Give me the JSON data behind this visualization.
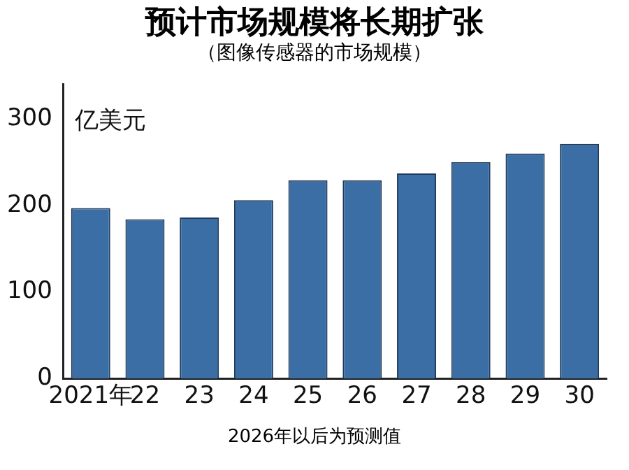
{
  "chart_data": {
    "type": "bar",
    "title": "预计市场规模将长期扩张",
    "subtitle": "（图像传感器的市场规模）",
    "ylabel": "亿美元",
    "annotations": [
      "2026年以后为预测值"
    ],
    "categories": [
      "2021年",
      "22",
      "23",
      "24",
      "25",
      "26",
      "27",
      "28",
      "29",
      "30"
    ],
    "values": [
      197,
      184,
      186,
      206,
      229,
      229,
      237,
      250,
      260,
      271
    ],
    "color": "#3a6ea5",
    "ylim": [
      0,
      340
    ],
    "yticks": [
      0,
      100,
      200,
      300
    ],
    "grid": false,
    "legend": false
  }
}
